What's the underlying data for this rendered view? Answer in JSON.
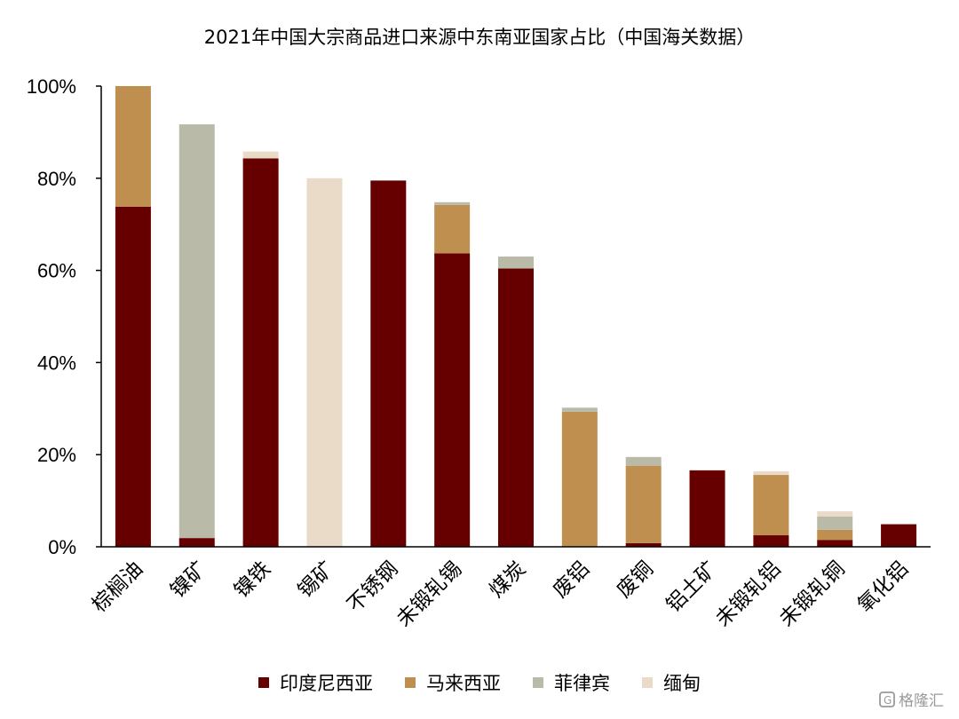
{
  "chart_data": {
    "type": "bar",
    "stacked": true,
    "title": "2021年中国大宗商品进口来源中东南亚国家占比（中国海关数据）",
    "categories": [
      "棕榈油",
      "镍矿",
      "镍铁",
      "锡矿",
      "不锈钢",
      "未锻轧锡",
      "煤炭",
      "废铝",
      "废铜",
      "铝土矿",
      "未锻轧铝",
      "未锻轧铜",
      "氧化铝"
    ],
    "series": [
      {
        "name": "印度尼西亚",
        "color": "#660000",
        "values": [
          73.8,
          1.9,
          84.3,
          0.0,
          79.5,
          63.7,
          60.4,
          0.0,
          0.8,
          16.6,
          2.5,
          1.5,
          4.9
        ]
      },
      {
        "name": "马来西亚",
        "color": "#BF8F4F",
        "values": [
          26.2,
          0.0,
          0.0,
          0.0,
          0.0,
          10.5,
          0.0,
          29.3,
          16.8,
          0.0,
          13.1,
          2.2,
          0.0
        ]
      },
      {
        "name": "菲律宾",
        "color": "#BABAA9",
        "values": [
          0.0,
          89.8,
          0.0,
          0.0,
          0.0,
          0.6,
          2.6,
          0.9,
          1.9,
          0.0,
          0.0,
          2.9,
          0.0
        ]
      },
      {
        "name": "缅甸",
        "color": "#EADBC8",
        "values": [
          0.0,
          0.0,
          1.5,
          80.0,
          0.0,
          0.0,
          0.0,
          0.0,
          0.0,
          0.0,
          0.8,
          1.1,
          0.0
        ]
      }
    ],
    "ylim": [
      0,
      100
    ],
    "yticks": [
      "0%",
      "20%",
      "40%",
      "60%",
      "80%",
      "100%"
    ],
    "xlabel": "",
    "ylabel": "",
    "grid": false,
    "legend": "bottom"
  },
  "watermark": {
    "text": "格隆汇"
  }
}
